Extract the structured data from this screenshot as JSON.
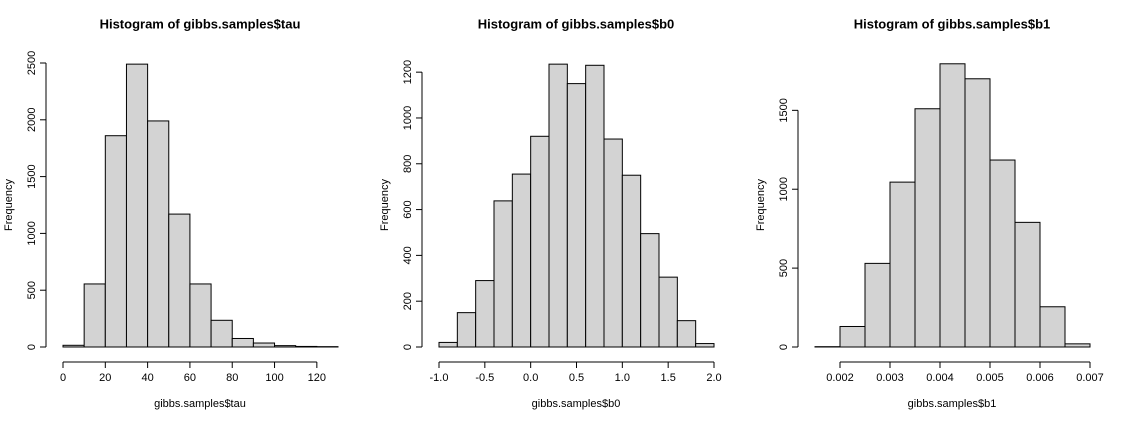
{
  "chart_data": [
    {
      "type": "histogram",
      "title": "Histogram of gibbs.samples$tau",
      "xlabel": "gibbs.samples$tau",
      "ylabel": "Frequency",
      "bins": [
        0,
        10,
        20,
        30,
        40,
        50,
        60,
        70,
        80,
        90,
        100,
        110,
        120,
        130
      ],
      "values": [
        15,
        555,
        1860,
        2490,
        1990,
        1170,
        555,
        235,
        75,
        35,
        12,
        5,
        3
      ],
      "color": "#d3d3d3",
      "xlim": [
        0,
        130
      ],
      "ylim": [
        0,
        2500
      ],
      "xticks": [
        0,
        20,
        40,
        60,
        80,
        100,
        120
      ],
      "yticks": [
        0,
        500,
        1000,
        1500,
        2000,
        2500
      ]
    },
    {
      "type": "histogram",
      "title": "Histogram of gibbs.samples$b0",
      "xlabel": "gibbs.samples$b0",
      "ylabel": "Frequency",
      "bins": [
        -1.0,
        -0.8,
        -0.6,
        -0.4,
        -0.2,
        0.0,
        0.2,
        0.4,
        0.6,
        0.8,
        1.0,
        1.2,
        1.4,
        1.6,
        1.8,
        2.0
      ],
      "values": [
        20,
        150,
        290,
        638,
        755,
        920,
        1235,
        1150,
        1230,
        908,
        750,
        495,
        305,
        115,
        15
      ],
      "color": "#d3d3d3",
      "xlim": [
        -1,
        2
      ],
      "ylim": [
        0,
        1240
      ],
      "xticks": [
        {
          "value": -1,
          "label": "-1.0"
        },
        -0.5,
        {
          "value": 0,
          "label": "0.0"
        },
        0.5,
        {
          "value": 1,
          "label": "1.0"
        },
        1.5,
        {
          "value": 2,
          "label": "2.0"
        }
      ],
      "yticks": [
        0,
        200,
        400,
        600,
        800,
        1000,
        1200
      ]
    },
    {
      "type": "histogram",
      "title": "Histogram of gibbs.samples$b1",
      "xlabel": "gibbs.samples$b1",
      "ylabel": "Frequency",
      "bins": [
        0.0015,
        0.002,
        0.0025,
        0.003,
        0.0035,
        0.004,
        0.0045,
        0.005,
        0.0055,
        0.006,
        0.0065,
        0.007
      ],
      "values": [
        2,
        130,
        530,
        1045,
        1510,
        1795,
        1700,
        1185,
        790,
        255,
        20
      ],
      "color": "#d3d3d3",
      "xlim": [
        0.0015,
        0.007
      ],
      "ylim": [
        0,
        1800
      ],
      "xticks": [
        0.002,
        0.003,
        0.004,
        0.005,
        0.006,
        0.007
      ],
      "yticks": [
        0,
        500,
        1000,
        1500
      ]
    }
  ]
}
